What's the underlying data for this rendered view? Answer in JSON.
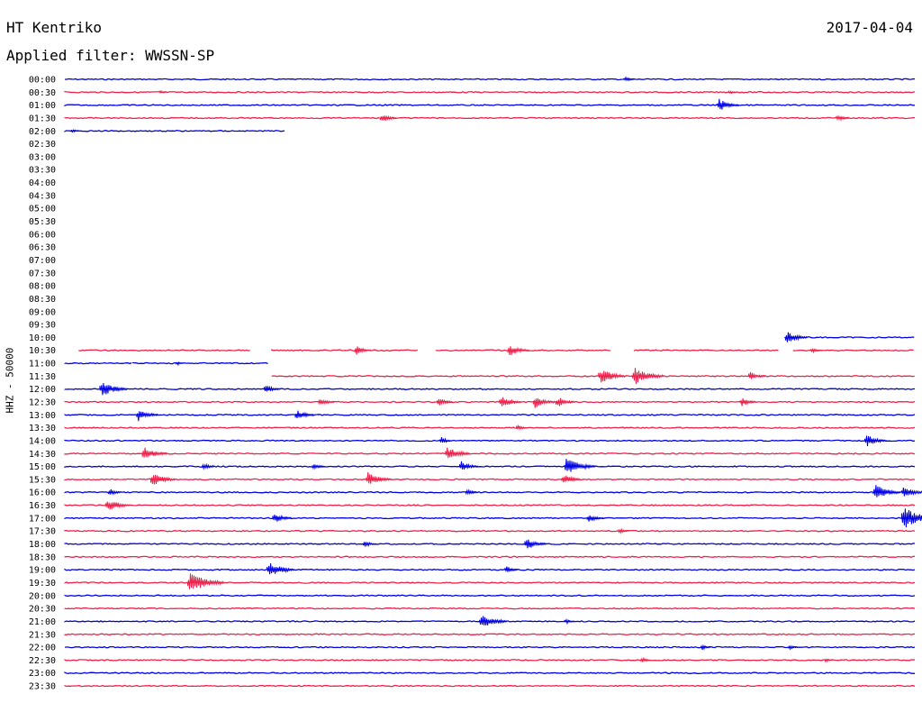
{
  "header": {
    "station": "HT Kentriko",
    "date": "2017-04-04",
    "filter": "Applied filter: WWSSN-SP"
  },
  "colors": {
    "blue": "#0000e6",
    "red": "#f0204a"
  },
  "chart_data": {
    "type": "line",
    "title": "HT Kentriko",
    "ylabel": "HHZ - 50000",
    "y_tick_labels": [
      "00:00",
      "00:30",
      "01:00",
      "01:30",
      "02:00",
      "02:30",
      "03:00",
      "03:30",
      "04:00",
      "04:30",
      "05:00",
      "05:30",
      "06:00",
      "06:30",
      "07:00",
      "07:30",
      "08:00",
      "08:30",
      "09:00",
      "09:30",
      "10:00",
      "10:30",
      "11:00",
      "11:30",
      "12:00",
      "12:30",
      "13:00",
      "13:30",
      "14:00",
      "14:30",
      "15:00",
      "15:30",
      "16:00",
      "16:30",
      "17:00",
      "17:30",
      "18:00",
      "18:30",
      "19:00",
      "19:30",
      "20:00",
      "20:30",
      "21:00",
      "21:30",
      "22:00",
      "22:30",
      "23:00",
      "23:30"
    ],
    "x_unit": "minutes into row",
    "x_range": [
      0,
      30
    ],
    "rows": [
      {
        "label": "00:00",
        "segments": [
          [
            0,
            30
          ]
        ],
        "events": [
          [
            19.8,
            3
          ]
        ]
      },
      {
        "label": "00:30",
        "segments": [
          [
            0,
            30
          ]
        ],
        "events": [
          [
            3.4,
            2
          ],
          [
            23.5,
            2
          ]
        ]
      },
      {
        "label": "01:00",
        "segments": [
          [
            0,
            30
          ]
        ],
        "events": [
          [
            23.1,
            7
          ]
        ]
      },
      {
        "label": "01:30",
        "segments": [
          [
            0,
            30
          ]
        ],
        "events": [
          [
            11.2,
            5
          ],
          [
            27.3,
            4
          ]
        ]
      },
      {
        "label": "02:00",
        "segments": [
          [
            0,
            7.8
          ]
        ],
        "events": [
          [
            0.3,
            2
          ]
        ]
      },
      {
        "label": "02:30",
        "segments": [],
        "events": []
      },
      {
        "label": "03:00",
        "segments": [],
        "events": []
      },
      {
        "label": "03:30",
        "segments": [],
        "events": []
      },
      {
        "label": "04:00",
        "segments": [],
        "events": []
      },
      {
        "label": "04:30",
        "segments": [],
        "events": []
      },
      {
        "label": "05:00",
        "segments": [],
        "events": []
      },
      {
        "label": "05:30",
        "segments": [],
        "events": []
      },
      {
        "label": "06:00",
        "segments": [],
        "events": []
      },
      {
        "label": "06:30",
        "segments": [],
        "events": []
      },
      {
        "label": "07:00",
        "segments": [],
        "events": []
      },
      {
        "label": "07:30",
        "segments": [],
        "events": []
      },
      {
        "label": "08:00",
        "segments": [],
        "events": []
      },
      {
        "label": "08:30",
        "segments": [],
        "events": []
      },
      {
        "label": "09:00",
        "segments": [],
        "events": []
      },
      {
        "label": "09:30",
        "segments": [],
        "events": []
      },
      {
        "label": "10:00",
        "segments": [
          [
            25.4,
            30
          ]
        ],
        "events": [
          [
            25.5,
            7
          ]
        ]
      },
      {
        "label": "10:30",
        "segments": [
          [
            0.5,
            6.6
          ],
          [
            7.3,
            12.5
          ],
          [
            13.1,
            19.3
          ],
          [
            20.1,
            25.2
          ],
          [
            25.7,
            30
          ]
        ],
        "events": [
          [
            10.3,
            5
          ],
          [
            15.7,
            7
          ],
          [
            26.4,
            3
          ]
        ]
      },
      {
        "label": "11:00",
        "segments": [
          [
            0,
            2.4
          ],
          [
            2.4,
            7.2
          ]
        ],
        "events": [
          [
            4,
            2
          ]
        ]
      },
      {
        "label": "11:30",
        "segments": [
          [
            7.3,
            30
          ]
        ],
        "events": [
          [
            18.9,
            9
          ],
          [
            20.1,
            10
          ],
          [
            24.2,
            5
          ]
        ]
      },
      {
        "label": "12:00",
        "segments": [
          [
            0,
            30
          ]
        ],
        "events": [
          [
            1.3,
            9
          ],
          [
            7.1,
            5
          ]
        ]
      },
      {
        "label": "12:30",
        "segments": [
          [
            0,
            30
          ]
        ],
        "events": [
          [
            9,
            5
          ],
          [
            13.2,
            5
          ],
          [
            15.4,
            7
          ],
          [
            16.6,
            7
          ],
          [
            17.4,
            6
          ],
          [
            23.9,
            5
          ]
        ]
      },
      {
        "label": "13:00",
        "segments": [
          [
            0,
            30
          ]
        ],
        "events": [
          [
            2.6,
            7
          ],
          [
            8.2,
            6
          ]
        ]
      },
      {
        "label": "13:30",
        "segments": [
          [
            0,
            30
          ]
        ],
        "events": [
          [
            16,
            3
          ]
        ]
      },
      {
        "label": "14:00",
        "segments": [
          [
            0,
            30
          ]
        ],
        "events": [
          [
            13.3,
            4
          ],
          [
            28.3,
            7
          ]
        ]
      },
      {
        "label": "14:30",
        "segments": [
          [
            0,
            30
          ]
        ],
        "events": [
          [
            2.8,
            8
          ],
          [
            13.5,
            8
          ]
        ]
      },
      {
        "label": "15:00",
        "segments": [
          [
            0,
            30
          ]
        ],
        "events": [
          [
            4.9,
            4
          ],
          [
            8.8,
            4
          ],
          [
            14,
            6
          ],
          [
            17.7,
            10
          ]
        ]
      },
      {
        "label": "15:30",
        "segments": [
          [
            0,
            30
          ]
        ],
        "events": [
          [
            3.1,
            8
          ],
          [
            10.7,
            8
          ],
          [
            17.6,
            6
          ]
        ]
      },
      {
        "label": "16:00",
        "segments": [
          [
            0,
            30
          ]
        ],
        "events": [
          [
            1.6,
            4
          ],
          [
            14.2,
            4
          ],
          [
            28.6,
            9
          ],
          [
            29.6,
            7
          ]
        ]
      },
      {
        "label": "16:30",
        "segments": [
          [
            0,
            30
          ]
        ],
        "events": [
          [
            1.5,
            8
          ]
        ]
      },
      {
        "label": "17:00",
        "segments": [
          [
            0,
            30
          ]
        ],
        "events": [
          [
            7.4,
            6
          ],
          [
            18.5,
            5
          ],
          [
            29.6,
            13
          ]
        ]
      },
      {
        "label": "17:30",
        "segments": [
          [
            0,
            30
          ]
        ],
        "events": [
          [
            19.6,
            3
          ]
        ]
      },
      {
        "label": "18:00",
        "segments": [
          [
            0,
            30
          ]
        ],
        "events": [
          [
            10.6,
            4
          ],
          [
            16.3,
            7
          ]
        ]
      },
      {
        "label": "18:30",
        "segments": [
          [
            0,
            30
          ]
        ],
        "events": []
      },
      {
        "label": "19:00",
        "segments": [
          [
            0,
            30
          ]
        ],
        "events": [
          [
            7.2,
            9
          ],
          [
            15.6,
            4
          ]
        ]
      },
      {
        "label": "19:30",
        "segments": [
          [
            0,
            30
          ]
        ],
        "events": [
          [
            4.4,
            12
          ]
        ]
      },
      {
        "label": "20:00",
        "segments": [
          [
            0,
            30
          ]
        ],
        "events": []
      },
      {
        "label": "20:30",
        "segments": [
          [
            0,
            30
          ]
        ],
        "events": []
      },
      {
        "label": "21:00",
        "segments": [
          [
            0,
            30
          ]
        ],
        "events": [
          [
            14.7,
            9
          ],
          [
            17.7,
            3
          ]
        ]
      },
      {
        "label": "21:30",
        "segments": [
          [
            0,
            30
          ]
        ],
        "events": []
      },
      {
        "label": "22:00",
        "segments": [
          [
            0,
            30
          ]
        ],
        "events": [
          [
            22.5,
            3
          ],
          [
            25.6,
            3
          ]
        ]
      },
      {
        "label": "22:30",
        "segments": [
          [
            0,
            30
          ]
        ],
        "events": [
          [
            20.4,
            3
          ],
          [
            26.9,
            2
          ]
        ]
      },
      {
        "label": "23:00",
        "segments": [
          [
            0,
            30
          ]
        ],
        "events": []
      },
      {
        "label": "23:30",
        "segments": [
          [
            0,
            30
          ]
        ],
        "events": []
      }
    ]
  }
}
